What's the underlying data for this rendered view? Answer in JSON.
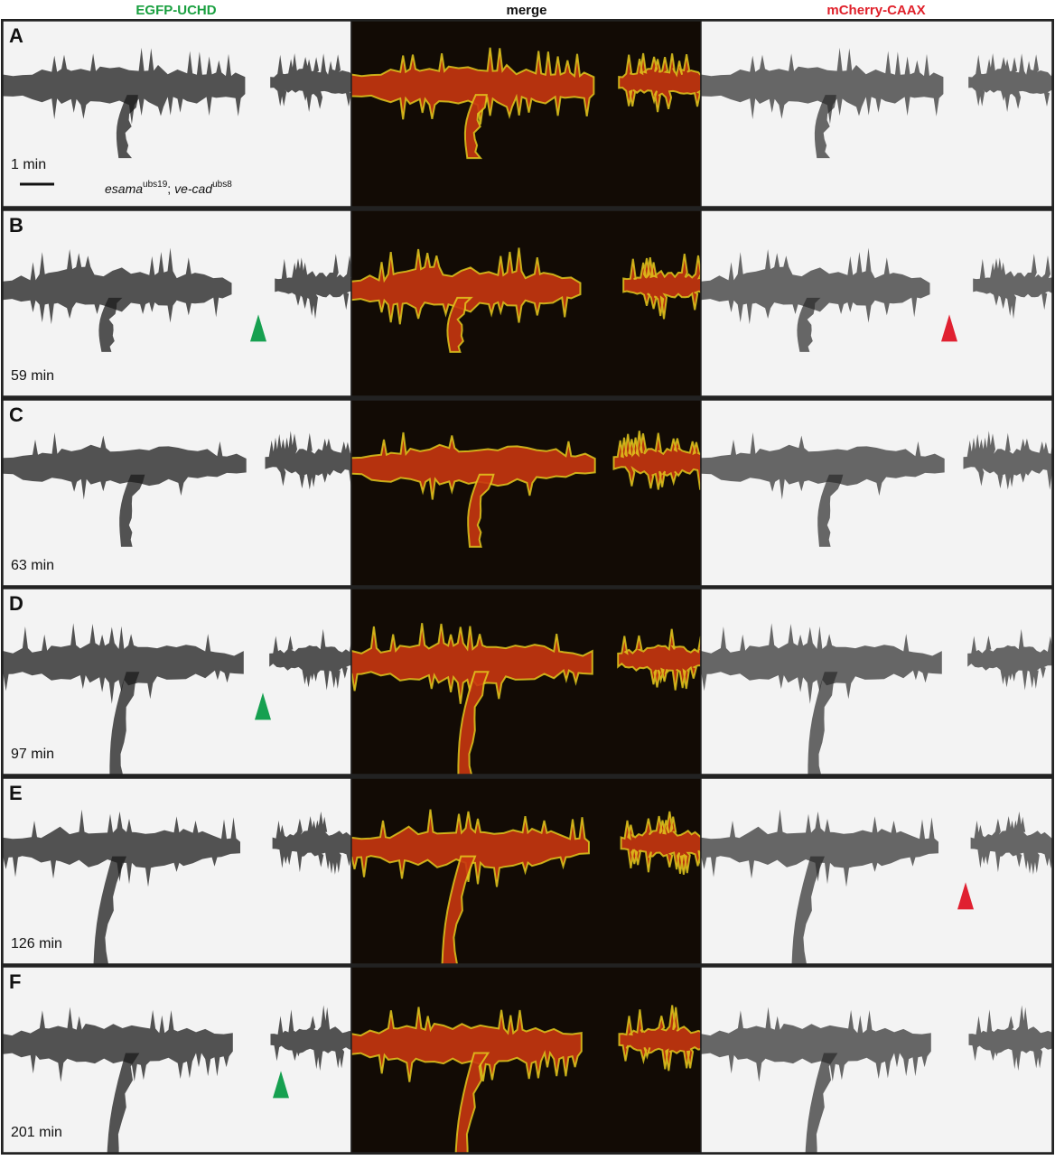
{
  "header": {
    "columns": [
      "EGFP-UCHD",
      "merge",
      "mCherry-CAAX"
    ]
  },
  "panels": [
    {
      "label": "A",
      "time": "1 min"
    },
    {
      "label": "B",
      "time": "59 min"
    },
    {
      "label": "C",
      "time": "63 min"
    },
    {
      "label": "D",
      "time": "97 min"
    },
    {
      "label": "E",
      "time": "126 min"
    },
    {
      "label": "F",
      "time": "201 min"
    }
  ],
  "annotation": {
    "gene1": "esama",
    "allele1": "ubs19",
    "separator": "; ",
    "gene2": "ve-cad",
    "allele2": "ubs8"
  }
}
